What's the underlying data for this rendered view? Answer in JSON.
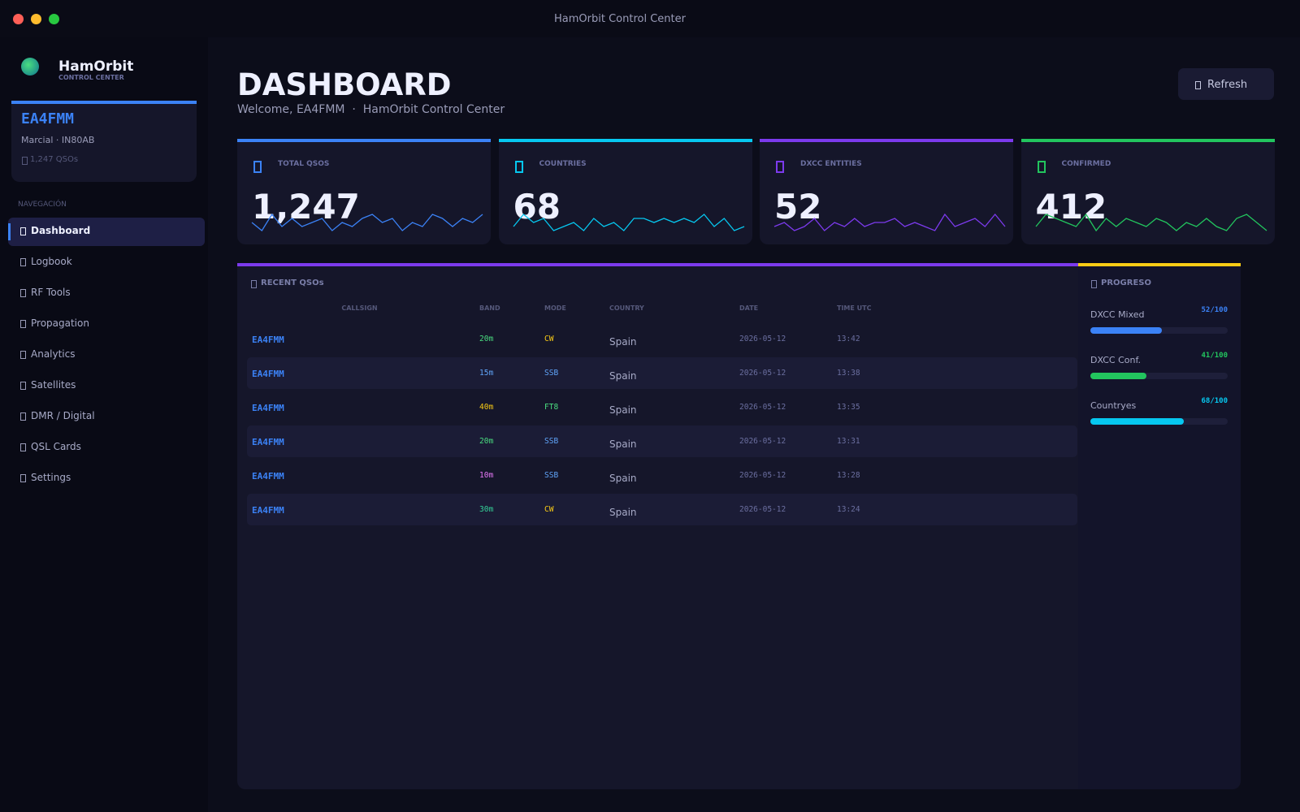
{
  "window": {
    "title": "HamOrbit Control Center"
  },
  "sidebar": {
    "brand": "HamOrbit",
    "brand_sub": "CONTROL CENTER",
    "profile": {
      "callsign": "EA4FMM",
      "details": "Marcial · IN80AB",
      "qsos": "1,247 QSOs"
    },
    "nav_heading": "NAVEGACIÓN",
    "nav": [
      {
        "label": "Dashboard",
        "active": true
      },
      {
        "label": "Logbook",
        "active": false
      },
      {
        "label": "RF Tools",
        "active": false
      },
      {
        "label": "Propagation",
        "active": false
      },
      {
        "label": "Analytics",
        "active": false
      },
      {
        "label": "Satellites",
        "active": false
      },
      {
        "label": "DMR / Digital",
        "active": false
      },
      {
        "label": "QSL Cards",
        "active": false
      },
      {
        "label": "Settings",
        "active": false
      }
    ]
  },
  "header": {
    "title": "DASHBOARD",
    "subtitle": "Welcome, EA4FMM  ·  HamOrbit Control Center",
    "refresh": "Refresh"
  },
  "stats": [
    {
      "label": "TOTAL QSOS",
      "value": "1,247",
      "color": "#3b82f6",
      "spark": [
        4,
        2,
        6,
        3,
        5,
        3,
        4,
        5,
        2,
        4,
        3,
        5,
        6,
        4,
        5,
        2,
        4,
        3,
        6,
        5,
        3,
        5,
        4,
        6
      ]
    },
    {
      "label": "COUNTRIES",
      "value": "68",
      "color": "#06c8f0",
      "spark": [
        3,
        6,
        4,
        5,
        2,
        3,
        4,
        2,
        5,
        3,
        4,
        2,
        5,
        5,
        4,
        5,
        4,
        5,
        4,
        6,
        3,
        5,
        2,
        3
      ]
    },
    {
      "label": "DXCC ENTITIES",
      "value": "52",
      "color": "#7c3aed",
      "spark": [
        3,
        4,
        2,
        3,
        5,
        2,
        4,
        3,
        5,
        3,
        4,
        4,
        5,
        3,
        4,
        3,
        2,
        6,
        3,
        4,
        5,
        3,
        6,
        3
      ]
    },
    {
      "label": "CONFIRMED",
      "value": "412",
      "color": "#22c55e",
      "spark": [
        3,
        6,
        5,
        4,
        3,
        6,
        2,
        5,
        3,
        5,
        4,
        3,
        5,
        4,
        2,
        4,
        3,
        5,
        3,
        2,
        5,
        6,
        4,
        2
      ]
    }
  ],
  "recent": {
    "title": "RECENT QSOs",
    "columns": [
      "CALLSIGN",
      "BAND",
      "MODE",
      "COUNTRY",
      "DATE",
      "TIME UTC"
    ],
    "rows": [
      [
        "EA4FMM",
        "20m",
        "CW",
        "Spain",
        "2026-05-12",
        "13:42"
      ],
      [
        "EA4FMM",
        "15m",
        "SSB",
        "Spain",
        "2026-05-12",
        "13:38"
      ],
      [
        "EA4FMM",
        "40m",
        "FT8",
        "Spain",
        "2026-05-12",
        "13:35"
      ],
      [
        "EA4FMM",
        "20m",
        "SSB",
        "Spain",
        "2026-05-12",
        "13:31"
      ],
      [
        "EA4FMM",
        "10m",
        "SSB",
        "Spain",
        "2026-05-12",
        "13:28"
      ],
      [
        "EA4FMM",
        "30m",
        "CW",
        "Spain",
        "2026-05-12",
        "13:24"
      ]
    ],
    "band_colors": {
      "20m": "#4ade80",
      "15m": "#60a5fa",
      "40m": "#facc15",
      "10m": "#e879f9",
      "30m": "#34d399"
    },
    "mode_colors": {
      "CW": "#facc15",
      "SSB": "#60a5fa",
      "FT8": "#4ade80"
    }
  },
  "progress": {
    "title": "PROGRESO",
    "items": [
      {
        "label": "DXCC Mixed",
        "text": "52/100",
        "value": 52,
        "max": 100,
        "color": "#3b82f6"
      },
      {
        "label": "DXCC Conf.",
        "text": "41/100",
        "value": 41,
        "max": 100,
        "color": "#22c55e"
      },
      {
        "label": "Countryes",
        "text": "68/100",
        "value": 68,
        "max": 100,
        "color": "#06c8f0"
      }
    ]
  }
}
